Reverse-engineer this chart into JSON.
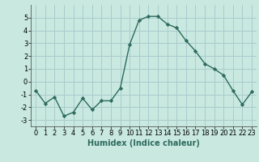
{
  "x": [
    0,
    1,
    2,
    3,
    4,
    5,
    6,
    7,
    8,
    9,
    10,
    11,
    12,
    13,
    14,
    15,
    16,
    17,
    18,
    19,
    20,
    21,
    22,
    23
  ],
  "y": [
    -0.7,
    -1.7,
    -1.2,
    -2.7,
    -2.4,
    -1.3,
    -2.2,
    -1.5,
    -1.5,
    -0.5,
    2.9,
    4.8,
    5.1,
    5.1,
    4.5,
    4.2,
    3.2,
    2.4,
    1.4,
    1.0,
    0.5,
    -0.7,
    -1.8,
    -0.8
  ],
  "line_color": "#2e6b5e",
  "marker": "D",
  "marker_size": 2.2,
  "linewidth": 1.0,
  "bg_color": "#c8e8e0",
  "grid_color": "#aacccc",
  "xlabel": "Humidex (Indice chaleur)",
  "xlabel_fontsize": 7,
  "xlim": [
    -0.5,
    23.5
  ],
  "ylim": [
    -3.5,
    6.0
  ],
  "yticks": [
    -3,
    -2,
    -1,
    0,
    1,
    2,
    3,
    4,
    5
  ],
  "xticks": [
    0,
    1,
    2,
    3,
    4,
    5,
    6,
    7,
    8,
    9,
    10,
    11,
    12,
    13,
    14,
    15,
    16,
    17,
    18,
    19,
    20,
    21,
    22,
    23
  ],
  "tick_fontsize": 6.0
}
